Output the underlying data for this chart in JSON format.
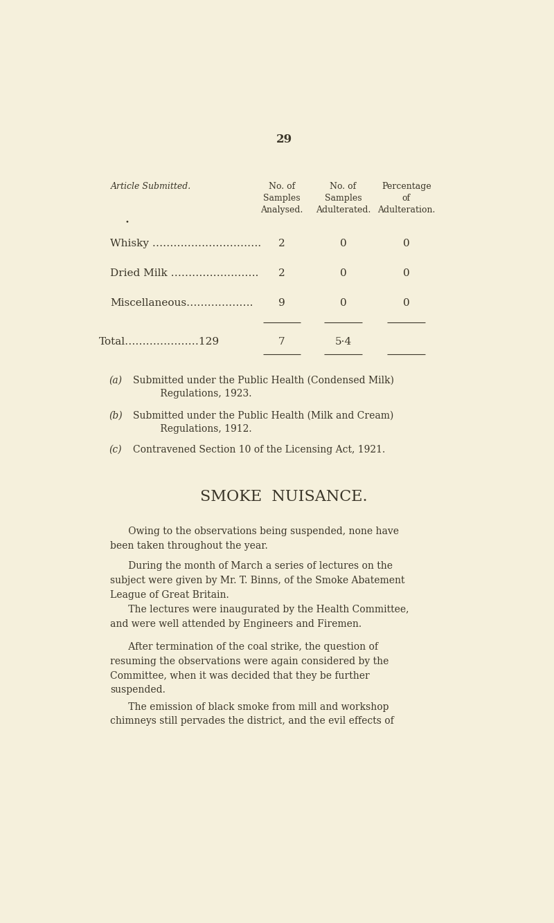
{
  "bg_color": "#f5f0dc",
  "text_color": "#3a3528",
  "page_number": "29",
  "table_header_col0": "Article Submitted.",
  "table_header_col1": "No. of\nSamples\nAnalysed.",
  "table_header_col2": "No. of\nSamples\nAdulterated.",
  "table_header_col3": "Percentage\nof\nAdulteration.",
  "row_labels": [
    "Whisky ………………………….",
    "Dried Milk …………………….",
    "Miscellaneous………………."
  ],
  "row_analysed": [
    "2",
    "2",
    "9"
  ],
  "row_adulterated": [
    "0",
    "0",
    "0"
  ],
  "row_percentage": [
    "0",
    "0",
    "0"
  ],
  "total_label": "Total…………………129",
  "total_analysed": "7",
  "total_adulterated": "5·4",
  "footnotes": [
    [
      "(a)",
      "Submitted under the Public Health (Condensed Milk)\n         Regulations, 1923."
    ],
    [
      "(b)",
      "Submitted under the Public Health (Milk and Cream)\n         Regulations, 1912."
    ],
    [
      "(c)",
      "Contravened Section 10 of the Licensing Act, 1921."
    ]
  ],
  "section_title": "SMOKE  NUISANCE.",
  "paragraphs": [
    "      Owing to the observations being suspended, none have\nbeen taken throughout the year.",
    "      During the month of March a series of lectures on the\nsubject were given by Mr. T. Binns, of the Smoke Abatement\nLeague of Great Britain.",
    "      The lectures were inaugurated by the Health Committee,\nand were well attended by Engineers and Firemen.",
    "      After termination of the coal strike, the question of\nresuming the observations were again considered by the\nCommittee, when it was decided that they be further\nsuspended.",
    "      The emission of black smoke from mill and workshop\nchimneys still pervades the district, and the evil effects of"
  ]
}
